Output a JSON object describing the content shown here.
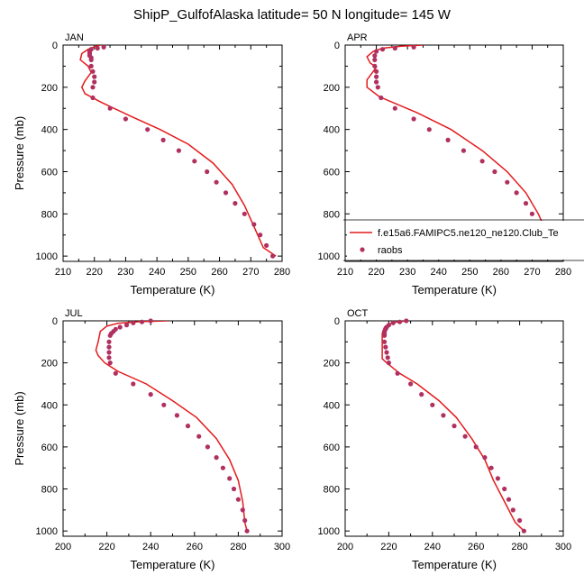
{
  "title": "ShipP_GulfofAlaska  latitude= 50 N longitude= 145 W",
  "colors": {
    "model": "#e41a1c",
    "obs": "#b03060",
    "axis": "#000000"
  },
  "chart_data": [
    {
      "type": "scatter",
      "panel": "JAN",
      "xlabel": "Temperature (K)",
      "ylabel": "Pressure (mb)",
      "xlim": [
        210,
        280
      ],
      "ylim": [
        1025,
        0
      ],
      "xticks": [
        210,
        220,
        230,
        240,
        250,
        260,
        270,
        280
      ],
      "yticks": [
        0,
        200,
        400,
        600,
        800,
        1000
      ],
      "series": [
        {
          "kind": "line",
          "color": "#e41a1c",
          "points": [
            [
              222,
              0
            ],
            [
              220,
              8
            ],
            [
              218,
              20
            ],
            [
              216,
              40
            ],
            [
              215.5,
              70
            ],
            [
              218,
              100
            ],
            [
              219,
              130
            ],
            [
              217,
              170
            ],
            [
              216,
              200
            ],
            [
              217,
              230
            ],
            [
              222,
              270
            ],
            [
              232,
              340
            ],
            [
              241,
              400
            ],
            [
              250,
              470
            ],
            [
              258,
              560
            ],
            [
              264,
              660
            ],
            [
              268,
              760
            ],
            [
              271,
              860
            ],
            [
              274,
              960
            ],
            [
              278,
              1000
            ]
          ]
        },
        {
          "kind": "points",
          "color": "#b03060",
          "points": [
            [
              223,
              10
            ],
            [
              221,
              15
            ],
            [
              219,
              20
            ],
            [
              218.5,
              30
            ],
            [
              218.5,
              40
            ],
            [
              218.5,
              50
            ],
            [
              219,
              60
            ],
            [
              219,
              70
            ],
            [
              219,
              100
            ],
            [
              219.5,
              125
            ],
            [
              220,
              150
            ],
            [
              220,
              175
            ],
            [
              219.5,
              200
            ],
            [
              219.5,
              250
            ],
            [
              225,
              300
            ],
            [
              230,
              350
            ],
            [
              237,
              400
            ],
            [
              242,
              450
            ],
            [
              247,
              500
            ],
            [
              252,
              550
            ],
            [
              256,
              600
            ],
            [
              259,
              650
            ],
            [
              262,
              700
            ],
            [
              265,
              750
            ],
            [
              268,
              800
            ],
            [
              271,
              850
            ],
            [
              273,
              900
            ],
            [
              275,
              950
            ],
            [
              277,
              1000
            ]
          ]
        }
      ]
    },
    {
      "type": "scatter",
      "panel": "APR",
      "xlabel": "Temperature (K)",
      "ylabel": "",
      "xlim": [
        210,
        280
      ],
      "ylim": [
        1025,
        0
      ],
      "xticks": [
        210,
        220,
        230,
        240,
        250,
        260,
        270,
        280
      ],
      "yticks": [
        0,
        200,
        400,
        600,
        800,
        1000
      ],
      "legend": {
        "placement": "lower-right",
        "entries": [
          {
            "label": "f.e15a6.FAMIPC5.ne120_ne120.Club_Te",
            "kind": "line"
          },
          {
            "label": "raobs",
            "kind": "points"
          }
        ]
      },
      "series": [
        {
          "kind": "line",
          "color": "#e41a1c",
          "points": [
            [
              235,
              0
            ],
            [
              228,
              5
            ],
            [
              222,
              15
            ],
            [
              219,
              30
            ],
            [
              217,
              55
            ],
            [
              218,
              85
            ],
            [
              220,
              105
            ],
            [
              219,
              125
            ],
            [
              217,
              165
            ],
            [
              217,
              200
            ],
            [
              221,
              245
            ],
            [
              233,
              320
            ],
            [
              244,
              400
            ],
            [
              254,
              500
            ],
            [
              262,
              600
            ],
            [
              268,
              700
            ],
            [
              272,
              800
            ],
            [
              275,
              900
            ],
            [
              278,
              1000
            ]
          ]
        },
        {
          "kind": "points",
          "color": "#b03060",
          "points": [
            [
              232,
              10
            ],
            [
              226,
              15
            ],
            [
              222,
              20
            ],
            [
              220,
              30
            ],
            [
              219.5,
              50
            ],
            [
              219.5,
              70
            ],
            [
              219.5,
              100
            ],
            [
              220,
              125
            ],
            [
              220,
              150
            ],
            [
              220,
              175
            ],
            [
              220.5,
              200
            ],
            [
              221.5,
              250
            ],
            [
              226,
              300
            ],
            [
              232,
              350
            ],
            [
              237,
              400
            ],
            [
              243,
              450
            ],
            [
              248,
              500
            ],
            [
              254,
              550
            ],
            [
              258,
              600
            ],
            [
              262,
              650
            ],
            [
              265,
              700
            ],
            [
              268,
              750
            ],
            [
              270,
              800
            ],
            [
              271,
              850
            ],
            [
              273,
              900
            ],
            [
              275,
              950
            ],
            [
              277,
              1000
            ]
          ]
        }
      ]
    },
    {
      "type": "scatter",
      "panel": "JUL",
      "xlabel": "Temperature (K)",
      "ylabel": "Pressure (mb)",
      "xlim": [
        200,
        300
      ],
      "ylim": [
        1025,
        0
      ],
      "xticks": [
        200,
        220,
        240,
        260,
        280,
        300
      ],
      "yticks": [
        0,
        200,
        400,
        600,
        800,
        1000
      ],
      "series": [
        {
          "kind": "line",
          "color": "#e41a1c",
          "points": [
            [
              248,
              0
            ],
            [
              235,
              4
            ],
            [
              225,
              12
            ],
            [
              220,
              25
            ],
            [
              217,
              50
            ],
            [
              216,
              100
            ],
            [
              215,
              140
            ],
            [
              216,
              165
            ],
            [
              219,
              200
            ],
            [
              225,
              240
            ],
            [
              238,
              300
            ],
            [
              250,
              380
            ],
            [
              261,
              460
            ],
            [
              270,
              560
            ],
            [
              276,
              660
            ],
            [
              280,
              760
            ],
            [
              282,
              860
            ],
            [
              283,
              960
            ],
            [
              284,
              1000
            ]
          ]
        },
        {
          "kind": "points",
          "color": "#b03060",
          "points": [
            [
              240,
              0
            ],
            [
              236,
              5
            ],
            [
              232,
              10
            ],
            [
              229,
              20
            ],
            [
              226,
              30
            ],
            [
              224,
              40
            ],
            [
              223,
              50
            ],
            [
              222,
              60
            ],
            [
              221.5,
              70
            ],
            [
              221,
              100
            ],
            [
              221,
              125
            ],
            [
              221,
              150
            ],
            [
              221,
              175
            ],
            [
              221.5,
              200
            ],
            [
              224,
              250
            ],
            [
              232,
              300
            ],
            [
              240,
              350
            ],
            [
              246,
              400
            ],
            [
              252,
              450
            ],
            [
              257,
              500
            ],
            [
              262,
              550
            ],
            [
              266,
              600
            ],
            [
              270,
              650
            ],
            [
              273,
              700
            ],
            [
              276,
              750
            ],
            [
              278,
              800
            ],
            [
              280,
              850
            ],
            [
              282,
              900
            ],
            [
              283,
              950
            ],
            [
              284,
              1000
            ]
          ]
        }
      ]
    },
    {
      "type": "scatter",
      "panel": "OCT",
      "xlabel": "Temperature (K)",
      "ylabel": "",
      "xlim": [
        200,
        300
      ],
      "ylim": [
        1025,
        0
      ],
      "xticks": [
        200,
        220,
        240,
        260,
        280,
        300
      ],
      "yticks": [
        0,
        200,
        400,
        600,
        800,
        1000
      ],
      "series": [
        {
          "kind": "line",
          "color": "#e41a1c",
          "points": [
            [
              228,
              0
            ],
            [
              224,
              5
            ],
            [
              220,
              15
            ],
            [
              218,
              30
            ],
            [
              217,
              60
            ],
            [
              217,
              100
            ],
            [
              217,
              150
            ],
            [
              217,
              180
            ],
            [
              219,
              200
            ],
            [
              225,
              250
            ],
            [
              233,
              300
            ],
            [
              243,
              380
            ],
            [
              251,
              460
            ],
            [
              258,
              560
            ],
            [
              264,
              660
            ],
            [
              268,
              760
            ],
            [
              273,
              860
            ],
            [
              278,
              960
            ],
            [
              282,
              1000
            ]
          ]
        },
        {
          "kind": "points",
          "color": "#b03060",
          "points": [
            [
              228,
              0
            ],
            [
              225,
              5
            ],
            [
              222,
              10
            ],
            [
              220,
              20
            ],
            [
              219,
              30
            ],
            [
              218.5,
              40
            ],
            [
              218,
              50
            ],
            [
              218,
              60
            ],
            [
              218,
              70
            ],
            [
              218,
              100
            ],
            [
              218.5,
              125
            ],
            [
              219,
              150
            ],
            [
              219.5,
              175
            ],
            [
              220,
              200
            ],
            [
              224,
              250
            ],
            [
              230,
              300
            ],
            [
              235,
              350
            ],
            [
              240,
              400
            ],
            [
              245,
              450
            ],
            [
              250,
              500
            ],
            [
              255,
              550
            ],
            [
              260,
              600
            ],
            [
              264,
              650
            ],
            [
              267,
              700
            ],
            [
              270,
              750
            ],
            [
              273,
              800
            ],
            [
              275,
              850
            ],
            [
              277,
              900
            ],
            [
              280,
              950
            ],
            [
              282,
              1000
            ]
          ]
        }
      ]
    }
  ]
}
